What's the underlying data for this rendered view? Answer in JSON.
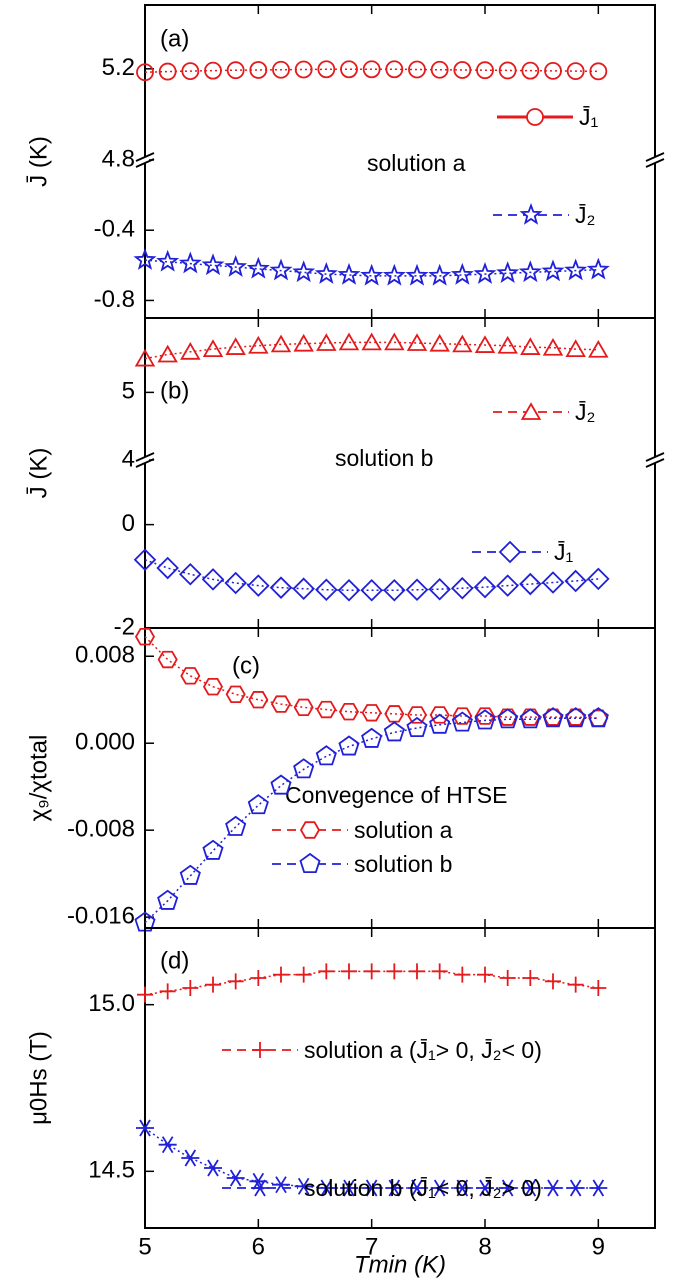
{
  "chart_data": [
    {
      "type": "line",
      "panel_label": "(a)",
      "annotation": "solution a",
      "ylabel": "J̄ (K)",
      "x": [
        5,
        5.2,
        5.4,
        5.6,
        5.8,
        6,
        6.2,
        6.4,
        6.6,
        6.8,
        7,
        7.2,
        7.4,
        7.6,
        7.8,
        8,
        8.2,
        8.4,
        8.6,
        8.8,
        9
      ],
      "xlim": [
        5,
        9.5
      ],
      "xticks": [
        5,
        6,
        7,
        8,
        9
      ],
      "broken": true,
      "ylim_upper": [
        4.8,
        5.48
      ],
      "yticks_upper": [
        4.8,
        5.2
      ],
      "ylim": [
        -0.9,
        0
      ],
      "yticks": [
        -0.8,
        -0.4
      ],
      "series": [
        {
          "name": "J̄₁",
          "color": "#e41a1c",
          "marker": "circle",
          "line_style": "solid",
          "part": "upper",
          "values": [
            5.185,
            5.188,
            5.19,
            5.192,
            5.194,
            5.195,
            5.196,
            5.197,
            5.198,
            5.198,
            5.198,
            5.198,
            5.197,
            5.196,
            5.195,
            5.194,
            5.193,
            5.192,
            5.191,
            5.19,
            5.189
          ]
        },
        {
          "name": "J̄₂",
          "color": "#2020d8",
          "marker": "star",
          "line_style": "dashed",
          "part": "lower",
          "values": [
            -0.57,
            -0.58,
            -0.59,
            -0.6,
            -0.61,
            -0.62,
            -0.63,
            -0.64,
            -0.65,
            -0.655,
            -0.66,
            -0.66,
            -0.66,
            -0.66,
            -0.655,
            -0.65,
            -0.645,
            -0.64,
            -0.635,
            -0.63,
            -0.625
          ]
        }
      ]
    },
    {
      "type": "line",
      "panel_label": "(b)",
      "annotation": "solution b",
      "ylabel": "J̄ (K)",
      "x": [
        5,
        5.2,
        5.4,
        5.6,
        5.8,
        6,
        6.2,
        6.4,
        6.6,
        6.8,
        7,
        7.2,
        7.4,
        7.6,
        7.8,
        8,
        8.2,
        8.4,
        8.6,
        8.8,
        9
      ],
      "xlim": [
        5,
        9.5
      ],
      "xticks": [
        5,
        6,
        7,
        8,
        9
      ],
      "broken": true,
      "ylim_upper": [
        4,
        6.1
      ],
      "yticks_upper": [
        4,
        5
      ],
      "ylim": [
        -2,
        1.25
      ],
      "yticks": [
        -2,
        0
      ],
      "series": [
        {
          "name": "J̄₂",
          "color": "#e41a1c",
          "marker": "triangle",
          "line_style": "dashed",
          "part": "upper",
          "values": [
            5.5,
            5.56,
            5.6,
            5.64,
            5.67,
            5.69,
            5.71,
            5.72,
            5.73,
            5.74,
            5.74,
            5.74,
            5.73,
            5.72,
            5.71,
            5.7,
            5.69,
            5.67,
            5.66,
            5.64,
            5.63
          ]
        },
        {
          "name": "J̄₁",
          "color": "#2020d8",
          "marker": "diamond",
          "line_style": "dashed",
          "part": "lower",
          "values": [
            -0.68,
            -0.84,
            -0.96,
            -1.06,
            -1.13,
            -1.18,
            -1.22,
            -1.24,
            -1.26,
            -1.27,
            -1.27,
            -1.27,
            -1.26,
            -1.25,
            -1.23,
            -1.21,
            -1.18,
            -1.15,
            -1.12,
            -1.09,
            -1.05
          ]
        }
      ]
    },
    {
      "type": "line",
      "panel_label": "(c)",
      "annotation": "Convegence of HTSE",
      "ylabel": "χ₉/χtotal",
      "x": [
        5,
        5.2,
        5.4,
        5.6,
        5.8,
        6,
        6.2,
        6.4,
        6.6,
        6.8,
        7,
        7.2,
        7.4,
        7.6,
        7.8,
        8,
        8.2,
        8.4,
        8.6,
        8.8,
        9
      ],
      "xlim": [
        5,
        9.5
      ],
      "xticks": [
        5,
        6,
        7,
        8,
        9
      ],
      "ylim": [
        -0.017,
        0.0106
      ],
      "yticks": [
        -0.016,
        -0.008,
        {
          "value": 0,
          "label": "0.000"
        },
        0.008
      ],
      "series": [
        {
          "name": "solution a",
          "color": "#e41a1c",
          "marker": "hexagon",
          "line_style": "dashed",
          "values": [
            0.0098,
            0.0077,
            0.0062,
            0.0052,
            0.0045,
            0.004,
            0.0036,
            0.0033,
            0.0031,
            0.0029,
            0.0028,
            0.0027,
            0.0026,
            0.0026,
            0.0025,
            0.0025,
            0.0024,
            0.0024,
            0.0024,
            0.0024,
            0.0023
          ]
        },
        {
          "name": "solution b",
          "color": "#2020d8",
          "marker": "pentagon",
          "line_style": "dashed",
          "values": [
            -0.0165,
            -0.0145,
            -0.0122,
            -0.0099,
            -0.0077,
            -0.0057,
            -0.0039,
            -0.0024,
            -0.0012,
            -0.0003,
            0.0004,
            0.001,
            0.0014,
            0.0017,
            0.0019,
            0.0021,
            0.0022,
            0.0022,
            0.0023,
            0.0023,
            0.0023
          ]
        }
      ]
    },
    {
      "type": "line",
      "panel_label": "(d)",
      "ylabel": "μ0Hs (T)",
      "xlabel": "Tmin (K)",
      "x": [
        5,
        5.2,
        5.4,
        5.6,
        5.8,
        6,
        6.2,
        6.4,
        6.6,
        6.8,
        7,
        7.2,
        7.4,
        7.6,
        7.8,
        8,
        8.2,
        8.4,
        8.6,
        8.8,
        9
      ],
      "xlim": [
        5,
        9.5
      ],
      "xticks": [
        5,
        6,
        7,
        8,
        9
      ],
      "ylim": [
        14.33,
        15.23
      ],
      "yticks": [
        14.5,
        {
          "value": 15,
          "label": "15.0"
        }
      ],
      "series": [
        {
          "name": "solution a  (J̄₁> 0, J̄₂< 0)",
          "color": "#e41a1c",
          "marker": "plus",
          "line_style": "dashed",
          "values": [
            15.03,
            15.04,
            15.05,
            15.06,
            15.07,
            15.08,
            15.09,
            15.09,
            15.1,
            15.1,
            15.1,
            15.1,
            15.1,
            15.1,
            15.09,
            15.09,
            15.08,
            15.08,
            15.07,
            15.06,
            15.05
          ]
        },
        {
          "name": "solution b  (J̄₁< 0, J̄₂> 0)",
          "color": "#2020d8",
          "marker": "asterisk",
          "line_style": "dashed",
          "values": [
            14.63,
            14.58,
            14.54,
            14.51,
            14.48,
            14.47,
            14.46,
            14.455,
            14.45,
            14.45,
            14.45,
            14.45,
            14.45,
            14.45,
            14.45,
            14.45,
            14.45,
            14.45,
            14.45,
            14.45,
            14.45
          ]
        }
      ]
    }
  ]
}
